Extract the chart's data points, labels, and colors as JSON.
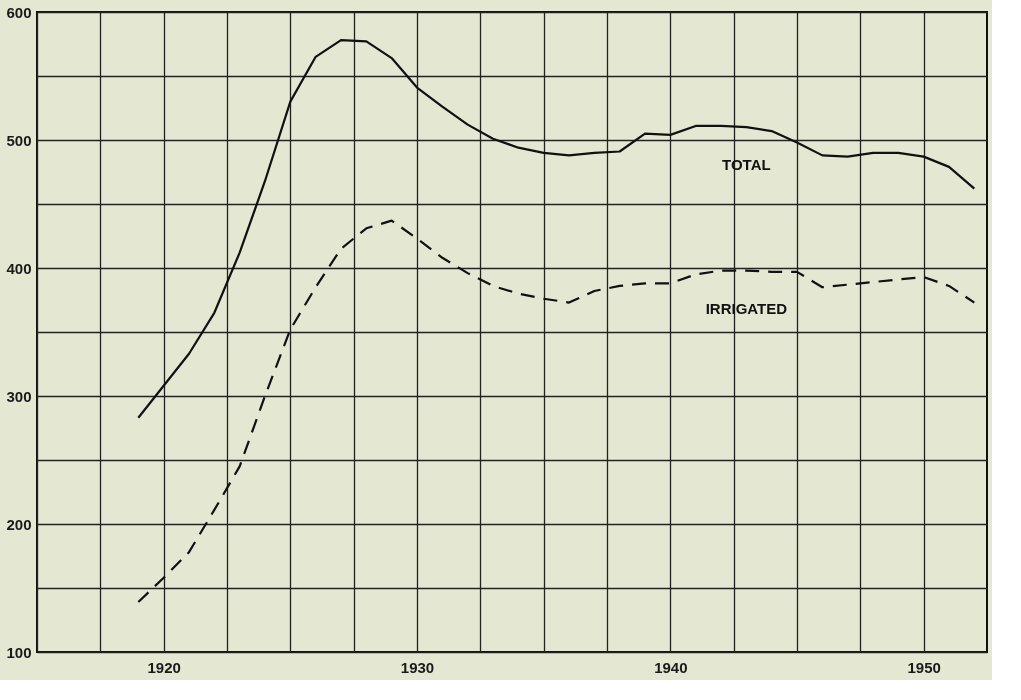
{
  "chart_data": {
    "type": "line",
    "x": [
      1919,
      1920,
      1921,
      1922,
      1923,
      1924,
      1925,
      1926,
      1927,
      1928,
      1929,
      1930,
      1931,
      1932,
      1933,
      1934,
      1935,
      1936,
      1937,
      1938,
      1939,
      1940,
      1941,
      1942,
      1943,
      1944,
      1945,
      1946,
      1947,
      1948,
      1949,
      1950,
      1951,
      1952
    ],
    "series": [
      {
        "name": "TOTAL",
        "color": "#111111",
        "line_style": "solid",
        "values": [
          283,
          308,
          333,
          365,
          412,
          468,
          530,
          565,
          578,
          577,
          564,
          541,
          526,
          512,
          501,
          494,
          490,
          488,
          490,
          491,
          505,
          504,
          511,
          511,
          510,
          507,
          498,
          488,
          487,
          490,
          490,
          487,
          479,
          462
        ]
      },
      {
        "name": "IRRIGATED",
        "color": "#111111",
        "line_style": "dashed",
        "values": [
          139,
          158,
          178,
          211,
          245,
          300,
          352,
          385,
          415,
          431,
          437,
          423,
          408,
          396,
          386,
          380,
          376,
          373,
          382,
          386,
          388,
          388,
          395,
          398,
          398,
          397,
          397,
          385,
          387,
          389,
          391,
          393,
          386,
          373
        ]
      }
    ],
    "xlim": [
      1915,
      1952.5
    ],
    "xticks": [
      {
        "value": 1915,
        "label": null
      },
      {
        "value": 1917.5,
        "label": null
      },
      1920,
      {
        "value": 1922.5,
        "label": null
      },
      {
        "value": 1925,
        "label": null
      },
      {
        "value": 1927.5,
        "label": null
      },
      1930,
      {
        "value": 1932.5,
        "label": null
      },
      {
        "value": 1935,
        "label": null
      },
      {
        "value": 1937.5,
        "label": null
      },
      1940,
      {
        "value": 1942.5,
        "label": null
      },
      {
        "value": 1945,
        "label": null
      },
      {
        "value": 1947.5,
        "label": null
      },
      1950
    ],
    "ylim": [
      100,
      600
    ],
    "yticks": [
      100,
      {
        "value": 150,
        "label": null
      },
      200,
      {
        "value": 250,
        "label": null
      },
      300,
      {
        "value": 350,
        "label": null
      },
      400,
      {
        "value": 450,
        "label": null
      },
      500,
      {
        "value": 550,
        "label": null
      },
      600
    ],
    "grid": true,
    "marker": "none"
  }
}
